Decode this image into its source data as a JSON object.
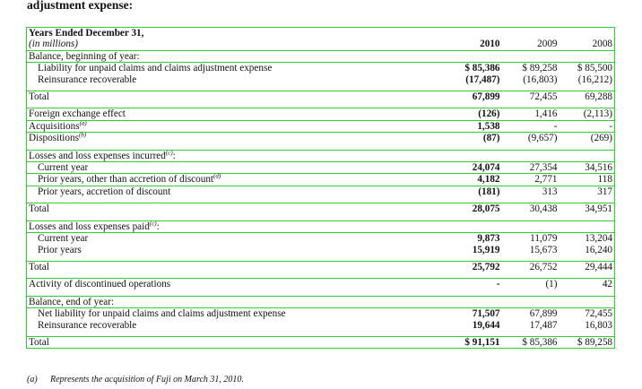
{
  "caption": "adjustment expense:",
  "header": {
    "line1": "Years Ended December 31,",
    "line2": "(in millions)",
    "years": [
      "2010",
      "2009",
      "2008"
    ]
  },
  "sections": {
    "begin": {
      "title": "Balance, beginning of year:",
      "rows": [
        {
          "label": "Liability for unpaid claims and claims adjustment expense",
          "v": [
            "$ 85,386",
            "$  89,258",
            "$  85,500"
          ]
        },
        {
          "label": "Reinsurance recoverable",
          "v": [
            "(17,487)",
            "(16,803)",
            "(16,212)"
          ]
        }
      ]
    },
    "total1": {
      "label": "Total",
      "v": [
        "67,899",
        "72,455",
        "69,288"
      ]
    },
    "misc": [
      {
        "label": "Foreign exchange effect",
        "sup": "",
        "v": [
          "(126)",
          "1,416",
          "(2,113)"
        ]
      },
      {
        "label": "Acquisitions",
        "sup": "(a)",
        "v": [
          "1,538",
          "-",
          "-"
        ]
      },
      {
        "label": "Dispositions",
        "sup": "(b)",
        "v": [
          "(87)",
          "(9,657)",
          "(269)"
        ]
      }
    ],
    "incurred": {
      "title": "Losses and loss expenses incurred",
      "title_sup": "(c)",
      "rows": [
        {
          "label": "Current year",
          "sup": "",
          "v": [
            "24,074",
            "27,354",
            "34,516"
          ]
        },
        {
          "label": "Prior years, other than accretion of discount",
          "sup": "(d)",
          "v": [
            "4,182",
            "2,771",
            "118"
          ]
        },
        {
          "label": "Prior years, accretion of discount",
          "sup": "",
          "v": [
            "(181)",
            "313",
            "317"
          ]
        }
      ]
    },
    "total2": {
      "label": "Total",
      "v": [
        "28,075",
        "30,438",
        "34,951"
      ]
    },
    "paid": {
      "title": "Losses and loss expenses paid",
      "title_sup": "(c)",
      "rows": [
        {
          "label": "Current year",
          "v": [
            "9,873",
            "11,079",
            "13,204"
          ]
        },
        {
          "label": "Prior years",
          "v": [
            "15,919",
            "15,673",
            "16,240"
          ]
        }
      ]
    },
    "total3": {
      "label": "Total",
      "v": [
        "25,792",
        "26,752",
        "29,444"
      ]
    },
    "discontinued": {
      "label": "Activity of discontinued operations",
      "v": [
        "-",
        "(1)",
        "42"
      ]
    },
    "end": {
      "title": "Balance, end of year:",
      "rows": [
        {
          "label": "Net liability for unpaid claims and claims adjustment expense",
          "v": [
            "71,507",
            "67,899",
            "72,455"
          ]
        },
        {
          "label": "Reinsurance recoverable",
          "v": [
            "19,644",
            "17,487",
            "16,803"
          ]
        }
      ]
    },
    "total4": {
      "label": "Total",
      "v": [
        "$ 91,151",
        "$  85,386",
        "$  89,258"
      ]
    }
  },
  "footnote": {
    "tag": "(a)",
    "text": "Represents the acquisition of Fuji on March 31, 2010."
  }
}
